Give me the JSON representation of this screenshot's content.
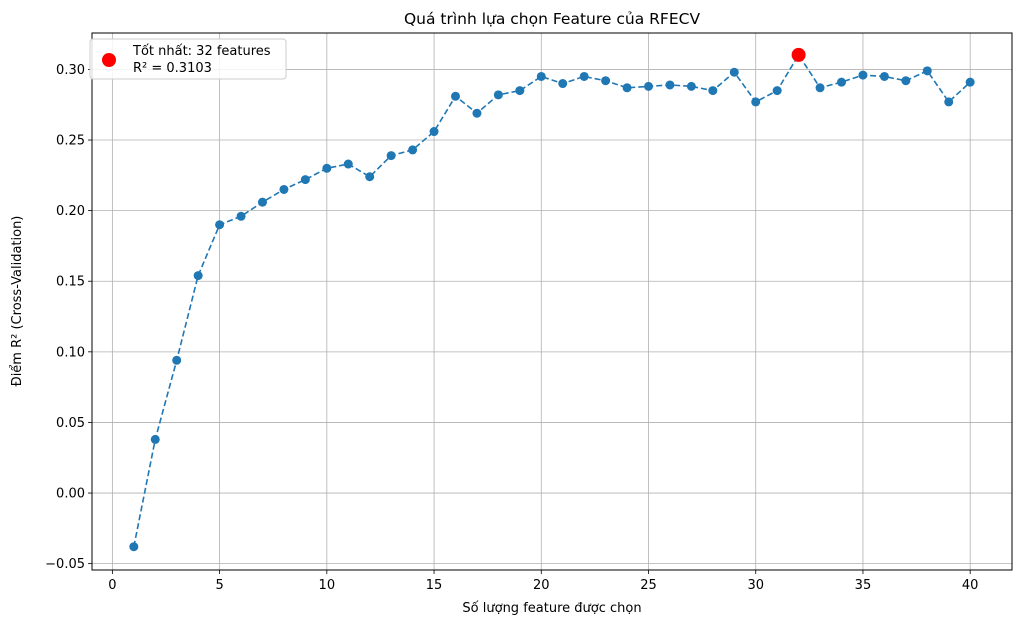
{
  "chart_data": {
    "type": "line",
    "title": "Quá trình lựa chọn Feature của RFECV",
    "xlabel": "Số lượng feature được chọn",
    "ylabel": "Điểm R² (Cross-Validation)",
    "xlim": [
      -0.95,
      41.95
    ],
    "ylim": [
      -0.0545,
      0.3258
    ],
    "xticks": [
      0,
      5,
      10,
      15,
      20,
      25,
      30,
      35,
      40
    ],
    "yticks": [
      -0.05,
      0.0,
      0.05,
      0.1,
      0.15,
      0.2,
      0.25,
      0.3
    ],
    "ytick_labels": [
      "−0.05",
      "0.00",
      "0.05",
      "0.10",
      "0.15",
      "0.20",
      "0.25",
      "0.30"
    ],
    "grid": true,
    "legend_position": "top-left",
    "series": [
      {
        "color": "#1f77b4",
        "line_style": "dashed",
        "marker": "circle",
        "x": [
          1,
          2,
          3,
          4,
          5,
          6,
          7,
          8,
          9,
          10,
          11,
          12,
          13,
          14,
          15,
          16,
          17,
          18,
          19,
          20,
          21,
          22,
          23,
          24,
          25,
          26,
          27,
          28,
          29,
          30,
          31,
          32,
          33,
          34,
          35,
          36,
          37,
          38,
          39,
          40
        ],
        "y": [
          -0.038,
          0.038,
          0.094,
          0.154,
          0.19,
          0.196,
          0.206,
          0.215,
          0.222,
          0.23,
          0.233,
          0.224,
          0.239,
          0.243,
          0.256,
          0.281,
          0.269,
          0.282,
          0.285,
          0.295,
          0.29,
          0.295,
          0.292,
          0.287,
          0.288,
          0.289,
          0.288,
          0.285,
          0.298,
          0.277,
          0.285,
          0.3103,
          0.287,
          0.291,
          0.296,
          0.295,
          0.292,
          0.299,
          0.277,
          0.291
        ]
      },
      {
        "name": "Tốt nhất: 32 features",
        "color": "#ff0000",
        "marker": "circle",
        "x": [
          32
        ],
        "y": [
          0.3103
        ]
      }
    ],
    "legend": {
      "line1": "Tốt nhất: 32 features",
      "line2": "R² = 0.3103"
    }
  }
}
